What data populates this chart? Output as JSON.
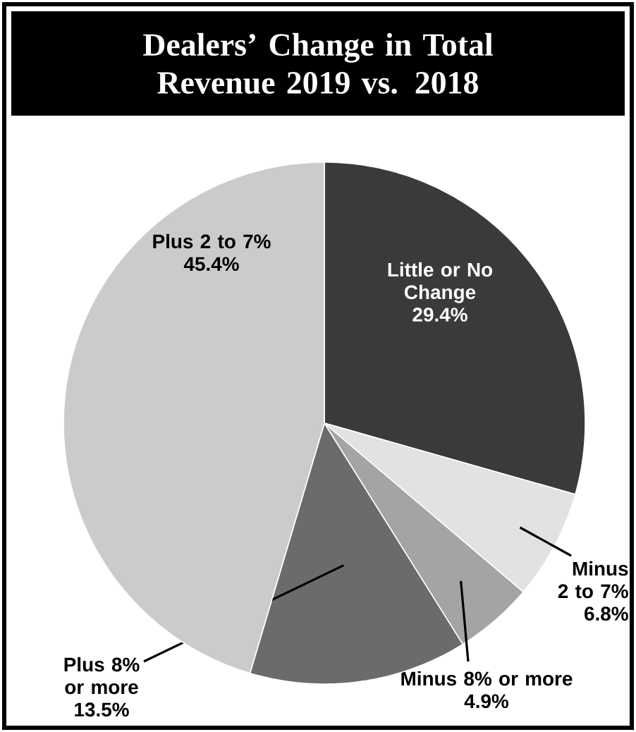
{
  "chart_data": {
    "type": "pie",
    "title": "Dealers’ Change in Total Revenue 2019 vs. 2018",
    "categories": [
      "Little or No Change",
      "Minus 2 to 7%",
      "Minus 8% or more",
      "Plus 8% or more",
      "Plus 2 to 7%"
    ],
    "values": [
      29.4,
      6.8,
      4.9,
      13.5,
      45.4
    ],
    "value_labels": [
      "29.4%",
      "6.8%",
      "4.9%",
      "13.5%",
      "45.4%"
    ],
    "colors": [
      "#3a3a3a",
      "#e2e2e2",
      "#a4a4a4",
      "#6b6b6b",
      "#cbcbcb"
    ]
  }
}
